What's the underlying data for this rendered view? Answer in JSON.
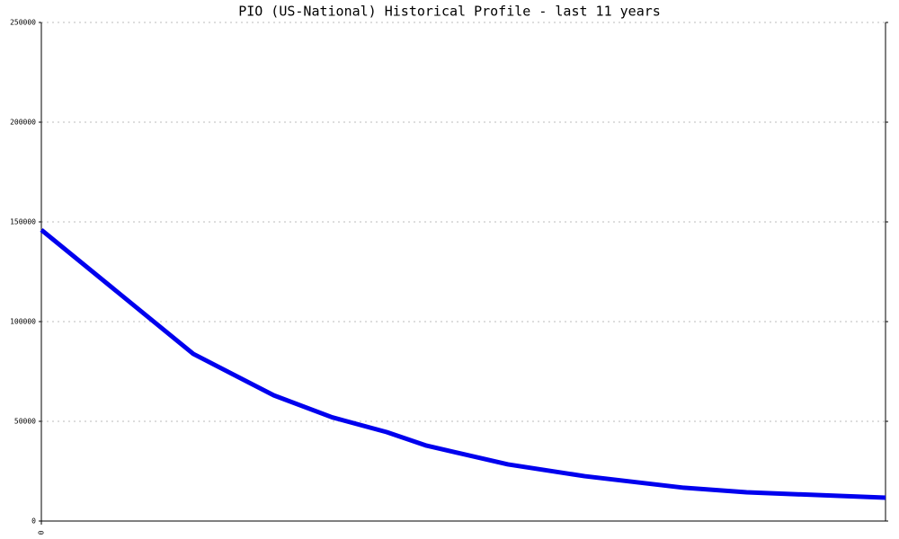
{
  "chart_data": {
    "type": "line",
    "title": "PIO (US-National) Historical Profile - last 11 years",
    "x": [
      0,
      1.98,
      3.03,
      3.79,
      4.5,
      5.02,
      6.08,
      7.08,
      8.37,
      9.19,
      11
    ],
    "series": [
      {
        "name": "PIO",
        "color": "#0000ee",
        "values": [
          146000,
          83800,
          63000,
          52000,
          44600,
          37800,
          28400,
          22500,
          16700,
          14400,
          11700
        ]
      }
    ],
    "xlim": [
      0,
      11
    ],
    "xticks": [
      0
    ],
    "ylim": [
      0,
      250000
    ],
    "yticks": [
      0,
      50000,
      100000,
      150000,
      200000,
      250000
    ],
    "grid": true
  }
}
